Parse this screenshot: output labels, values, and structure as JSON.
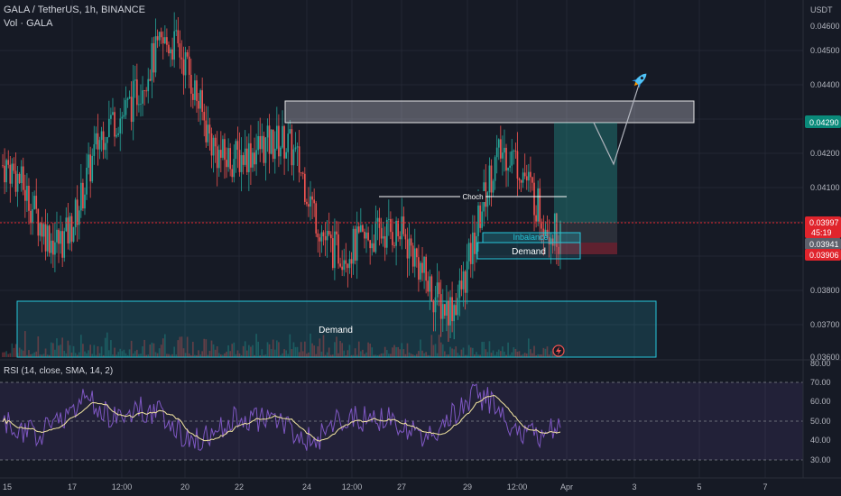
{
  "header": {
    "symbol_line": "GALA / TetherUS, 1h, BINANCE",
    "volume_line": "Vol · GALA",
    "currency": "USDT"
  },
  "price_axis": {
    "top_label": "0.04600",
    "ticks": [
      "0.04500",
      "0.04400",
      "0.04200",
      "0.04100",
      "0.03800",
      "0.03700",
      "0.03600"
    ]
  },
  "price_tags": [
    {
      "label": "0.04290",
      "color": "#0a8a7a"
    },
    {
      "label": "0.03997",
      "color": "#e0242c"
    },
    {
      "label": "45:19",
      "color": "#e0242c"
    },
    {
      "label": "0.03941",
      "color": "#5d606b"
    },
    {
      "label": "0.03906",
      "color": "#e0242c"
    }
  ],
  "annotations": {
    "choch": "Choch",
    "inbalance": "Inbalance",
    "demand_small": "Demand",
    "demand_large": "Demand"
  },
  "rsi": {
    "legend": "RSI (14, close, SMA, 14, 2)",
    "ticks": [
      "80.00",
      "70.00",
      "60.00",
      "50.00",
      "40.00",
      "30.00"
    ]
  },
  "time_axis": {
    "ticks": [
      "15",
      "17",
      "12:00",
      "20",
      "22",
      "24",
      "12:00",
      "27",
      "29",
      "12:00",
      "Apr",
      "3",
      "5",
      "7"
    ]
  },
  "colors": {
    "background": "#161a25",
    "up": "#26a69a",
    "down": "#ef5350",
    "rsi_line": "#7e57c2",
    "rsi_ma": "#f4e7a1",
    "zone_cyan": "#26c6da",
    "target_zone": "#1b5e57",
    "stop_zone": "#6b1e28"
  },
  "icons": [
    "rocket-icon",
    "lightning-icon"
  ],
  "chart_data": {
    "type": "line",
    "title": "GALA / TetherUS, 1h, BINANCE",
    "ylabel": "USDT",
    "ylim": [
      0.036,
      0.0468
    ],
    "x": [
      "15",
      "17",
      "12:00",
      "20",
      "22",
      "24",
      "12:00",
      "27",
      "29",
      "12:00",
      "Apr"
    ],
    "series": [
      {
        "values": [
          0.0418,
          0.0395,
          0.0432,
          0.0455,
          0.042,
          0.0425,
          0.0392,
          0.0398,
          0.0375,
          0.0422,
          0.0397
        ]
      }
    ],
    "grid": true
  }
}
